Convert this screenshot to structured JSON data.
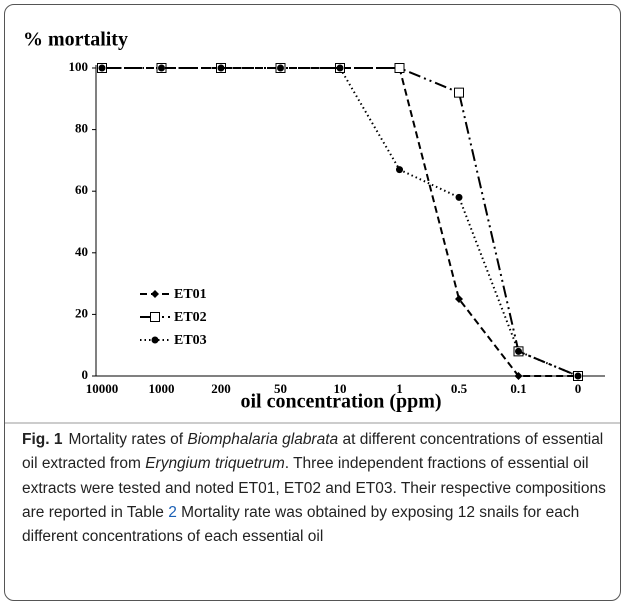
{
  "chart_data": {
    "type": "line",
    "ylabel": "% mortality",
    "xlabel": "oil concentration (ppm)",
    "categories": [
      "10000",
      "1000",
      "200",
      "50",
      "10",
      "1",
      "0.5",
      "0.1",
      "0"
    ],
    "ylim": [
      0,
      100
    ],
    "yticks": [
      0,
      20,
      40,
      60,
      80,
      100
    ],
    "legend": "left",
    "series": [
      {
        "name": "ET01",
        "color": "#000000",
        "dash": "dashed",
        "marker": "diamond",
        "values": [
          100,
          100,
          100,
          100,
          100,
          100,
          25,
          0,
          0
        ]
      },
      {
        "name": "ET02",
        "color": "#000000",
        "dash": "dashdot",
        "marker": "square",
        "values": [
          100,
          100,
          100,
          100,
          100,
          100,
          92,
          8,
          0
        ]
      },
      {
        "name": "ET03",
        "color": "#000000",
        "dash": "dotted",
        "marker": "circle",
        "values": [
          100,
          100,
          100,
          100,
          100,
          67,
          58,
          8,
          0
        ]
      }
    ]
  },
  "caption": {
    "label": "Fig. 1",
    "segments": [
      {
        "text": "Mortality rates of ",
        "style": "normal"
      },
      {
        "text": "Biomphalaria glabrata",
        "style": "italic"
      },
      {
        "text": " at different concentrations of essential oil extracted from ",
        "style": "normal"
      },
      {
        "text": "Eryngium triquetrum",
        "style": "italic"
      },
      {
        "text": ". Three independent fractions of essential oil extracts were tested and noted ET01, ET02 and ET03. Their respective compositions are reported in Table ",
        "style": "normal"
      },
      {
        "text": "2",
        "style": "link"
      },
      {
        "text": " Mortality rate was obtained by exposing 12 snails for each different concentrations of each essential oil",
        "style": "normal"
      }
    ]
  }
}
